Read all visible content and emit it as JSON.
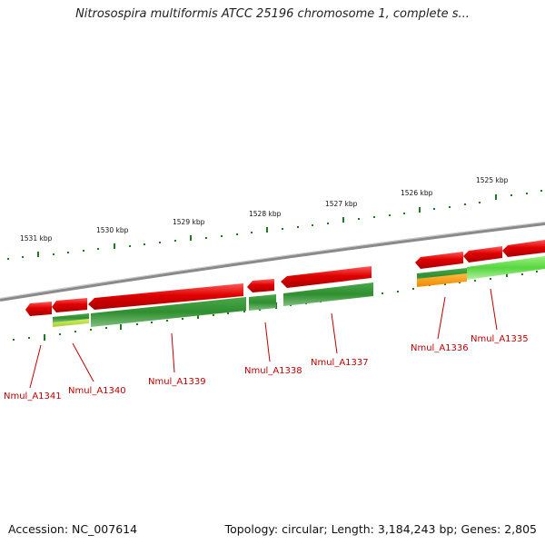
{
  "title": "Nitrosospira multiformis ATCC 25196 chromosome 1, complete s...",
  "footer": {
    "accession": "Accession: NC_007614",
    "summary": "Topology: circular; Length: 3,184,243 bp; Genes: 2,805"
  },
  "scale_labels": [
    "1531 kbp",
    "1530 kbp",
    "1529 kbp",
    "1528 kbp",
    "1527 kbp",
    "1526 kbp",
    "1525 kbp"
  ],
  "genes": [
    {
      "id": "Nmul_A1341"
    },
    {
      "id": "Nmul_A1340"
    },
    {
      "id": "Nmul_A1339"
    },
    {
      "id": "Nmul_A1338"
    },
    {
      "id": "Nmul_A1337"
    },
    {
      "id": "Nmul_A1336"
    },
    {
      "id": "Nmul_A1335"
    }
  ],
  "colors": {
    "forward_strand": "#e00000",
    "reverse_strand": "#2f8f2f",
    "reverse_light": "#66dd44",
    "reverse_yellow": "#ccee44",
    "reverse_orange": "#ff9900",
    "backbone": "#8a8a8a",
    "tick": "#1f7a1f",
    "gene_label": "#c00000"
  }
}
